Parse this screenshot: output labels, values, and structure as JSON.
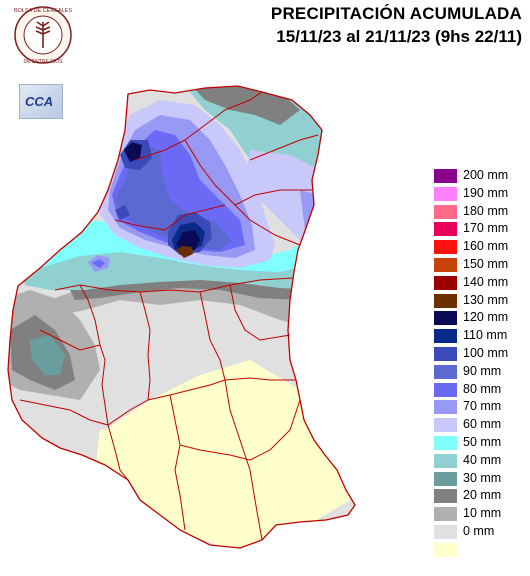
{
  "header": {
    "title_line1": "PRECIPITACIÓN ACUMULADA",
    "title_line2": "15/11/23 al 21/11/23 (9hs 22/11)"
  },
  "logos": {
    "bolsa_text": "BOLSA DE CEREALES DE ENTRE RIOS",
    "cca_text": "CCA"
  },
  "legend": [
    {
      "label": "200 mm",
      "color": "#8b008b"
    },
    {
      "label": "190 mm",
      "color": "#ff80ff"
    },
    {
      "label": "180 mm",
      "color": "#ff6a8a"
    },
    {
      "label": "170 mm",
      "color": "#e8005a"
    },
    {
      "label": "160 mm",
      "color": "#ff1010"
    },
    {
      "label": "150 mm",
      "color": "#c8400a"
    },
    {
      "label": "140 mm",
      "color": "#9a0000"
    },
    {
      "label": "130 mm",
      "color": "#6b3000"
    },
    {
      "label": "120 mm",
      "color": "#0a0a55"
    },
    {
      "label": "110 mm",
      "color": "#0a2a8a"
    },
    {
      "label": "100 mm",
      "color": "#3a4ab8"
    },
    {
      "label": "90 mm",
      "color": "#5a6ad0"
    },
    {
      "label": "80 mm",
      "color": "#6a6af5"
    },
    {
      "label": "70 mm",
      "color": "#9898f5"
    },
    {
      "label": "60 mm",
      "color": "#c8c8fa"
    },
    {
      "label": "50 mm",
      "color": "#80ffff"
    },
    {
      "label": "40 mm",
      "color": "#90d0d0"
    },
    {
      "label": "30 mm",
      "color": "#6a9e9e"
    },
    {
      "label": "20 mm",
      "color": "#808080"
    },
    {
      "label": "10 mm",
      "color": "#b0b0b0"
    },
    {
      "label": "0 mm",
      "color": "#e0e0e0"
    },
    {
      "label": "",
      "color": "#ffffcc"
    }
  ]
}
